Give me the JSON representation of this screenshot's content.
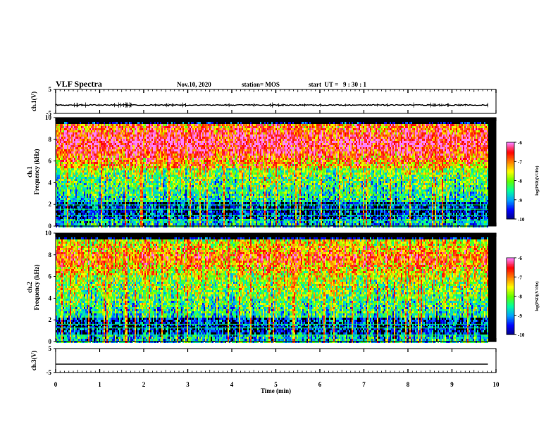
{
  "header": {
    "title": "VLF Spectra",
    "date": "Nov.10, 2020",
    "station": "station= MOS",
    "start": "start  UT =   9 : 30 : 1"
  },
  "chart_data": [
    {
      "type": "line",
      "name": "ch1-waveform",
      "ylabel": "ch.1(V)",
      "ylim": [
        -5,
        5
      ],
      "yticks": [
        "5",
        "-5"
      ],
      "xlim": [
        0,
        10
      ],
      "level": -1.5
    },
    {
      "type": "heatmap",
      "name": "ch1-spectrogram",
      "ylabel": "ch.1\nFrequency (kHz)",
      "xlim": [
        0,
        10
      ],
      "ylim": [
        0,
        10
      ],
      "yticks": [
        "0",
        "2",
        "4",
        "6",
        "8",
        "10"
      ],
      "data_end_min": 9.82,
      "colorbar": {
        "label": "log(PSD)(V²/Hz)",
        "range": [
          -10,
          -6
        ],
        "ticks": [
          "-6",
          "-7",
          "-8",
          "-9",
          "-10"
        ]
      },
      "lines_khz": [
        0.5,
        1.0,
        1.55,
        1.95,
        2.3
      ]
    },
    {
      "type": "heatmap",
      "name": "ch2-spectrogram",
      "ylabel": "ch.2\nFrequency (kHz)",
      "xlim": [
        0,
        10
      ],
      "ylim": [
        0,
        10
      ],
      "yticks": [
        "0",
        "2",
        "4",
        "6",
        "8",
        "10"
      ],
      "data_end_min": 9.82,
      "colorbar": {
        "label": "log(PSD)(V²/Hz)",
        "range": [
          -10,
          -6
        ],
        "ticks": [
          "-6",
          "-7",
          "-8",
          "-9",
          "-10"
        ]
      },
      "lines_khz": [
        0.6,
        1.25,
        1.6
      ]
    },
    {
      "type": "line",
      "name": "ch3-waveform",
      "ylabel": "ch.3(V)",
      "ylim": [
        -5,
        5
      ],
      "yticks": [
        "5",
        "-5"
      ],
      "xlim": [
        0,
        10
      ],
      "level": -1.5,
      "xlabel": "Time (min)",
      "xticks": [
        "0",
        "1",
        "2",
        "3",
        "4",
        "5",
        "6",
        "7",
        "8",
        "9",
        "10"
      ]
    }
  ],
  "colors": {
    "colormap": [
      "#000080",
      "#0000ff",
      "#00a0ff",
      "#00ffa0",
      "#60ff00",
      "#ffff00",
      "#ff8000",
      "#ff0000",
      "#ff80ff"
    ],
    "background": "#000000",
    "lines": "#00ff80"
  }
}
